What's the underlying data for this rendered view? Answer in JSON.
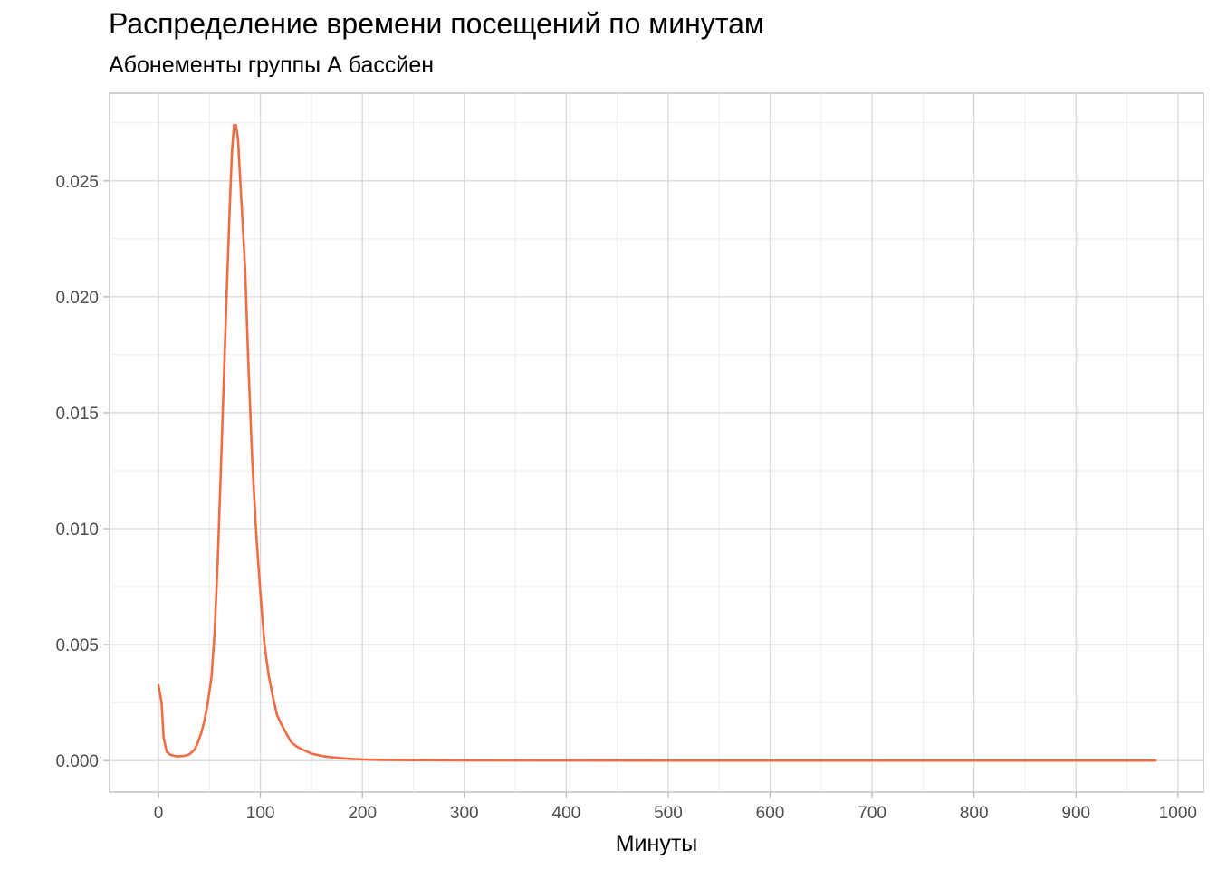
{
  "chart_data": {
    "type": "line",
    "title": "Распределение времени посещений по минутам",
    "subtitle": "Абонементы группы А бассйен",
    "xlabel": "Минуты",
    "ylabel": "",
    "xlim": [
      -48,
      1025
    ],
    "ylim": [
      -0.00136,
      0.02878
    ],
    "x_ticks": [
      0,
      100,
      200,
      300,
      400,
      500,
      600,
      700,
      800,
      900,
      1000
    ],
    "x_tick_labels": [
      "0",
      "100",
      "200",
      "300",
      "400",
      "500",
      "600",
      "700",
      "800",
      "900",
      "1000"
    ],
    "y_ticks": [
      0.0,
      0.005,
      0.01,
      0.015,
      0.02,
      0.025
    ],
    "y_tick_labels": [
      "0.000",
      "0.005",
      "0.010",
      "0.015",
      "0.020",
      "0.025"
    ],
    "grid": true,
    "line_color": "#f26b43",
    "series": [
      {
        "x": [
          0,
          3,
          5,
          8,
          12,
          18,
          25,
          30,
          35,
          38,
          42,
          45,
          48,
          52,
          55,
          58,
          61,
          64,
          67,
          70,
          72,
          74,
          76,
          78,
          80,
          82,
          85,
          88,
          92,
          96,
          100,
          104,
          108,
          112,
          116,
          120,
          125,
          130,
          135,
          140,
          150,
          160,
          170,
          180,
          190,
          200,
          220,
          250,
          300,
          400,
          500,
          600,
          700,
          800,
          900,
          978
        ],
        "y": [
          0.00325,
          0.0025,
          0.001,
          0.00038,
          0.00024,
          0.00018,
          0.0002,
          0.00026,
          0.00045,
          0.0007,
          0.0012,
          0.0017,
          0.0024,
          0.0036,
          0.0055,
          0.0085,
          0.0123,
          0.0163,
          0.0203,
          0.024,
          0.0262,
          0.0274,
          0.0274,
          0.0268,
          0.0252,
          0.0236,
          0.0212,
          0.0173,
          0.0129,
          0.0097,
          0.0072,
          0.005,
          0.0037,
          0.0028,
          0.002,
          0.0016,
          0.0012,
          0.0008,
          0.00062,
          0.0005,
          0.0003,
          0.0002,
          0.00014,
          0.0001,
          7e-05,
          5e-05,
          3e-05,
          2e-05,
          1e-05,
          5e-06,
          0.0,
          0.0,
          0.0,
          0.0,
          0.0,
          0.0
        ]
      }
    ]
  }
}
